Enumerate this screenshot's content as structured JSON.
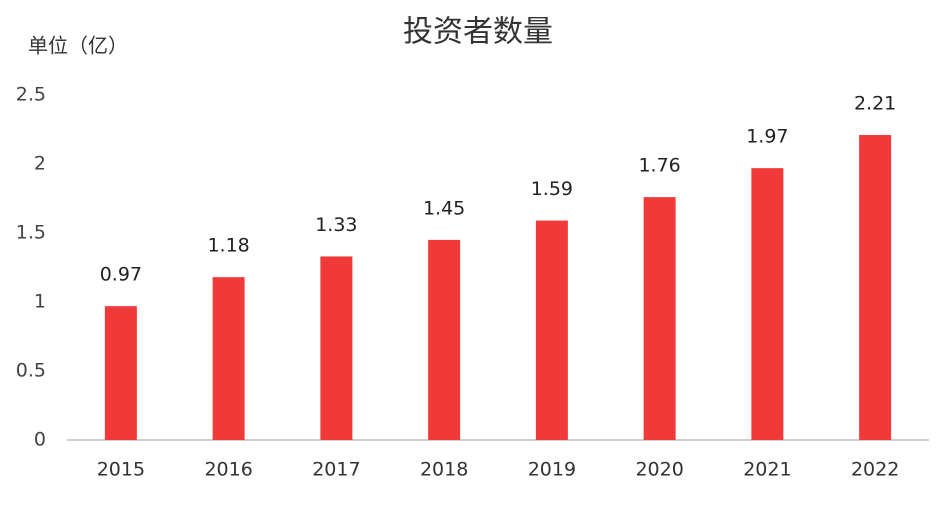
{
  "chart_data": {
    "type": "bar",
    "title": "投资者数量",
    "y_label": "单位（亿）",
    "categories": [
      "2015",
      "2016",
      "2017",
      "2018",
      "2019",
      "2020",
      "2021",
      "2022"
    ],
    "values": [
      0.97,
      1.18,
      1.33,
      1.45,
      1.59,
      1.76,
      1.97,
      2.21
    ],
    "color": "#f03a3a",
    "ylim": [
      0,
      2.5
    ],
    "yticks": [
      0,
      0.5,
      1,
      1.5,
      2,
      2.5
    ],
    "grid": false
  }
}
